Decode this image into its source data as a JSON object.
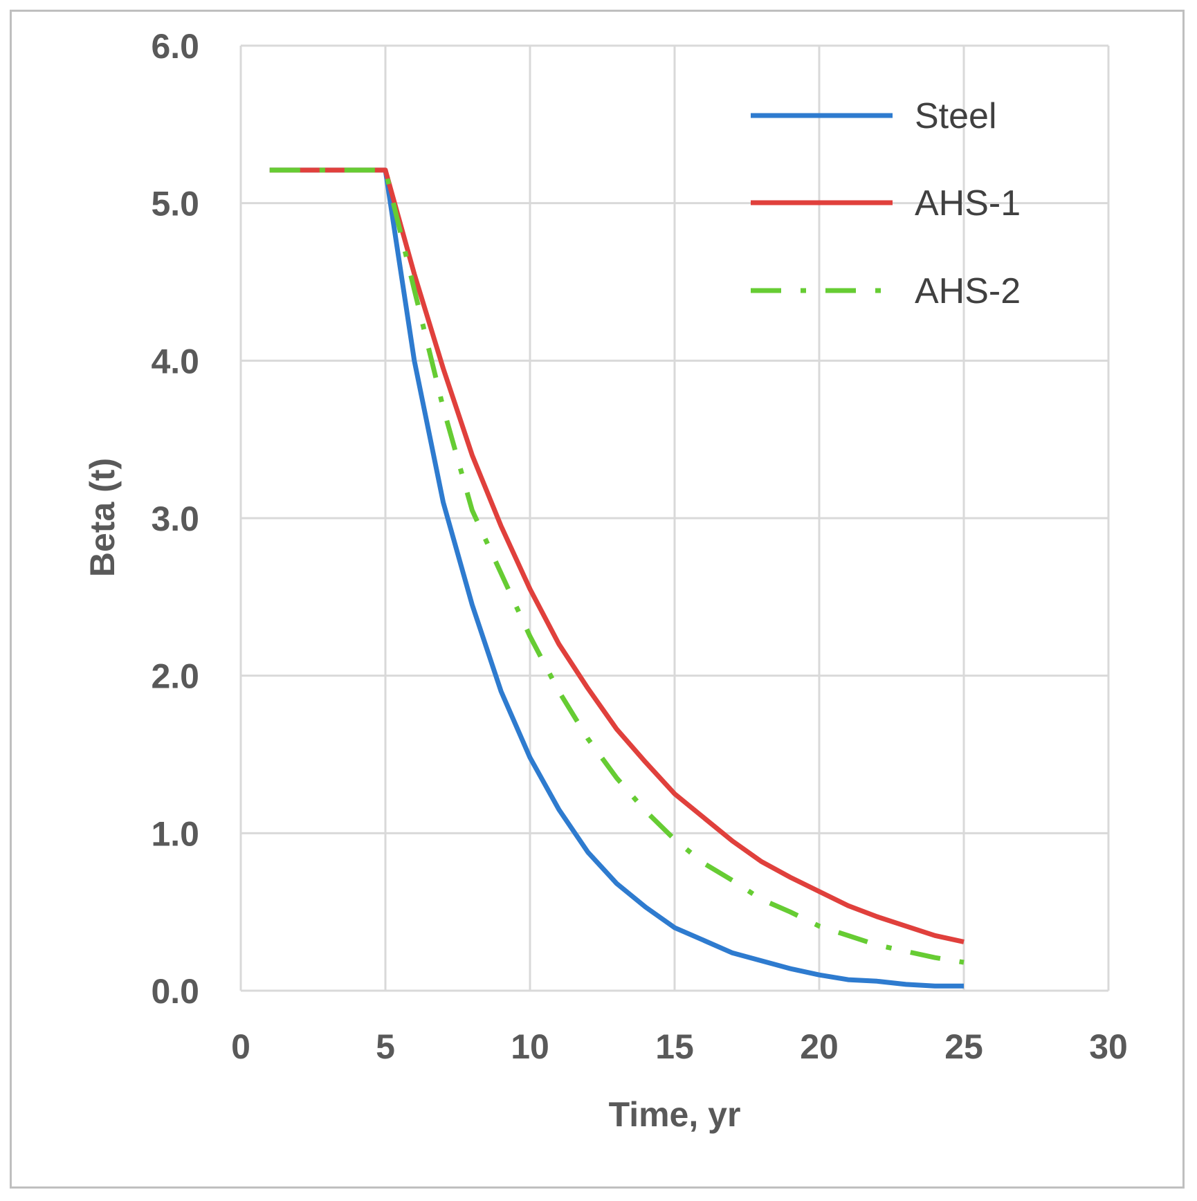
{
  "chart_data": {
    "type": "line",
    "title": "",
    "xlabel": "Time, yr",
    "ylabel": "Beta (t)",
    "xlim": [
      0,
      30
    ],
    "ylim": [
      0,
      6
    ],
    "x_ticks": [
      "0",
      "5",
      "10",
      "15",
      "20",
      "25",
      "30"
    ],
    "y_ticks": [
      "0.0",
      "1.0",
      "2.0",
      "3.0",
      "4.0",
      "5.0",
      "6.0"
    ],
    "grid": true,
    "legend_position": "top-right",
    "series": [
      {
        "name": "Steel",
        "color": "#2e7bcf",
        "dash": "solid",
        "x": [
          1,
          2,
          3,
          4,
          5,
          6,
          7,
          8,
          9,
          10,
          11,
          12,
          13,
          14,
          15,
          16,
          17,
          18,
          19,
          20,
          21,
          22,
          23,
          24,
          25
        ],
        "y": [
          5.21,
          5.21,
          5.21,
          5.21,
          5.21,
          4.0,
          3.1,
          2.45,
          1.9,
          1.48,
          1.15,
          0.88,
          0.68,
          0.53,
          0.4,
          0.32,
          0.24,
          0.19,
          0.14,
          0.1,
          0.07,
          0.06,
          0.04,
          0.03,
          0.03
        ]
      },
      {
        "name": "AHS-1",
        "color": "#e0403c",
        "dash": "solid",
        "x": [
          1,
          2,
          3,
          4,
          5,
          6,
          7,
          8,
          9,
          10,
          11,
          12,
          13,
          14,
          15,
          16,
          17,
          18,
          19,
          20,
          21,
          22,
          23,
          24,
          25
        ],
        "y": [
          5.21,
          5.21,
          5.21,
          5.21,
          5.21,
          4.55,
          3.95,
          3.4,
          2.95,
          2.55,
          2.2,
          1.92,
          1.66,
          1.45,
          1.25,
          1.1,
          0.95,
          0.82,
          0.72,
          0.63,
          0.54,
          0.47,
          0.41,
          0.35,
          0.31
        ]
      },
      {
        "name": "AHS-2",
        "color": "#66cc33",
        "dash": "dash-dot",
        "x": [
          1,
          2,
          3,
          4,
          5,
          6,
          7,
          8,
          9,
          10,
          11,
          12,
          13,
          14,
          15,
          16,
          17,
          18,
          19,
          20,
          21,
          22,
          23,
          24,
          25
        ],
        "y": [
          5.21,
          5.21,
          5.21,
          5.21,
          5.21,
          4.45,
          3.7,
          3.05,
          2.65,
          2.25,
          1.9,
          1.6,
          1.35,
          1.14,
          0.96,
          0.81,
          0.7,
          0.58,
          0.5,
          0.41,
          0.35,
          0.29,
          0.25,
          0.21,
          0.18
        ]
      }
    ]
  }
}
